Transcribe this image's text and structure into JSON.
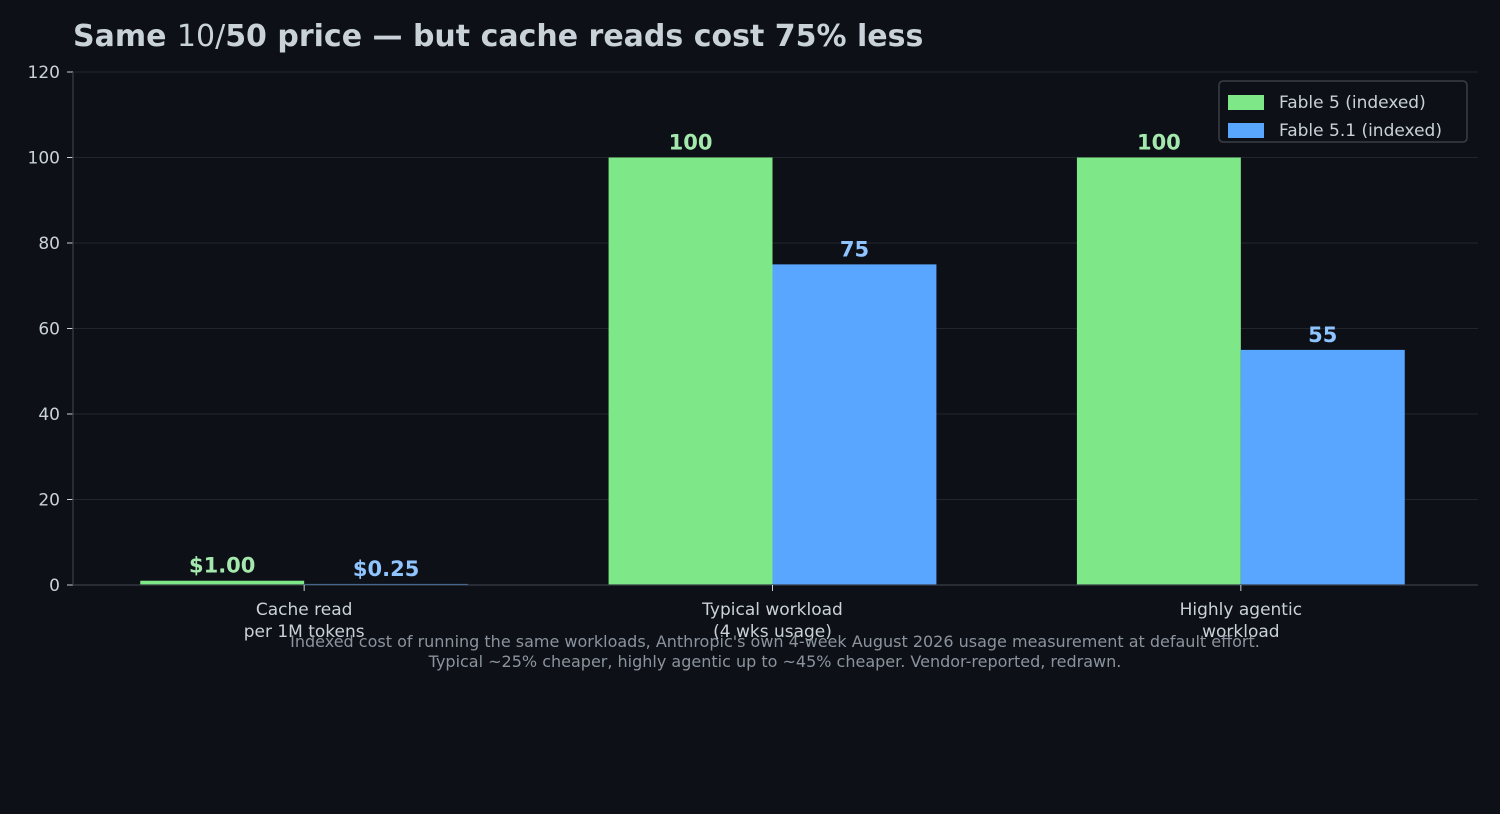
{
  "chart_data": {
    "type": "bar",
    "title_parts": {
      "bold_start": "Same ",
      "plain": "10/",
      "bold_end": "50 price — but cache reads cost 75% less"
    },
    "categories": [
      [
        "Cache read",
        "per 1M tokens"
      ],
      [
        "Typical workload",
        "(4 wks usage)"
      ],
      [
        "Highly agentic",
        "workload"
      ]
    ],
    "series": [
      {
        "name": "Fable 5 (indexed)",
        "color": "#7ee787",
        "values": [
          1.0,
          100,
          100
        ],
        "labels": [
          "$1.00",
          "100",
          "100"
        ]
      },
      {
        "name": "Fable 5.1 (indexed)",
        "color": "#58a6ff",
        "values": [
          0.25,
          75,
          55
        ],
        "labels": [
          "$0.25",
          "75",
          "55"
        ]
      }
    ],
    "ylim": [
      0,
      120
    ],
    "yticks": [
      0,
      20,
      40,
      60,
      80,
      100,
      120
    ],
    "grid": true,
    "legend_position": "top-right",
    "label_colors": [
      "#a5e8ad",
      "#8fc4ff"
    ]
  },
  "footnote": {
    "line1": "Indexed cost of running the same workloads, Anthropic's own 4-week August 2026 usage measurement at default effort.",
    "line2": "Typical ~25% cheaper, highly agentic up to ~45% cheaper. Vendor-reported, redrawn."
  },
  "colors": {
    "background": "#0d1017",
    "grid": "#21262d",
    "axis": "#3a3f47",
    "text": "#c9d1d9",
    "muted": "#8b949e"
  }
}
